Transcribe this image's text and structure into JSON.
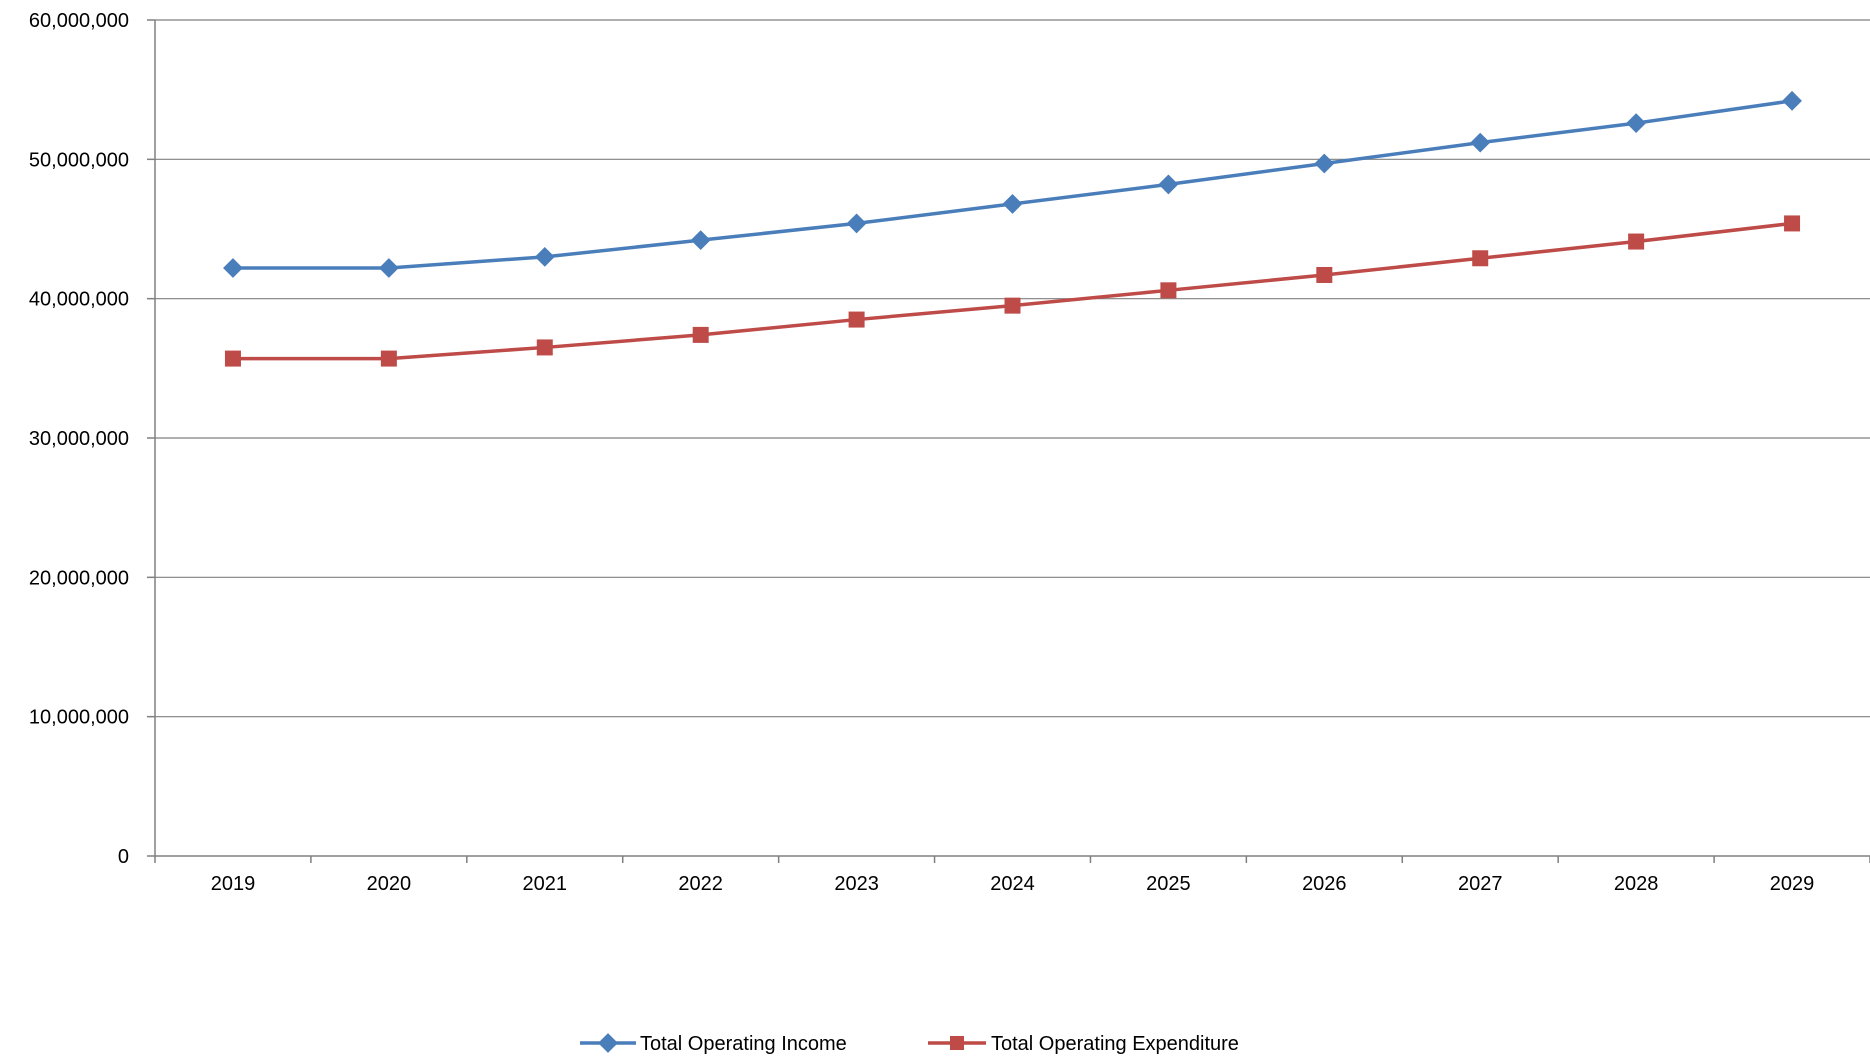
{
  "chart_data": {
    "type": "line",
    "title": "",
    "xlabel": "",
    "ylabel": "",
    "categories": [
      "2019",
      "2020",
      "2021",
      "2022",
      "2023",
      "2024",
      "2025",
      "2026",
      "2027",
      "2028",
      "2029"
    ],
    "ylim": [
      0,
      60000000
    ],
    "yticks": [
      0,
      10000000,
      20000000,
      30000000,
      40000000,
      50000000,
      60000000
    ],
    "ytick_labels": [
      "0",
      "10,000,000",
      "20,000,000",
      "30,000,000",
      "40,000,000",
      "50,000,000",
      "60,000,000"
    ],
    "grid": true,
    "legend_position": "bottom",
    "series": [
      {
        "name": "Total Operating Income",
        "color": "#4a7ebb",
        "marker": "diamond",
        "values": [
          42200000,
          42200000,
          43000000,
          44200000,
          45400000,
          46800000,
          48200000,
          49700000,
          51200000,
          52600000,
          54200000
        ]
      },
      {
        "name": "Total Operating Expenditure",
        "color": "#be4b48",
        "marker": "square",
        "values": [
          35700000,
          35700000,
          36500000,
          37400000,
          38500000,
          39500000,
          40600000,
          41700000,
          42900000,
          44100000,
          45400000
        ]
      }
    ]
  }
}
